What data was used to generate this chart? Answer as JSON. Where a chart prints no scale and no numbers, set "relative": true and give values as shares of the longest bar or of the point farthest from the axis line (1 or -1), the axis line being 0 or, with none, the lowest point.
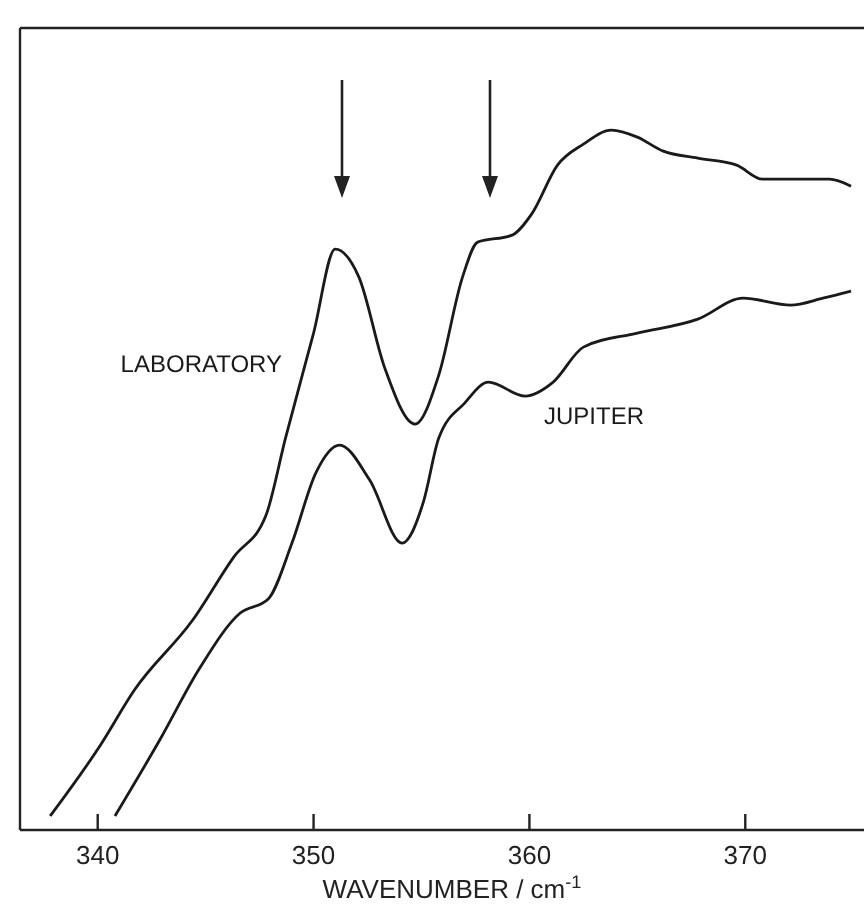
{
  "chart_data": {
    "type": "line",
    "relative": true,
    "xlabel": "WAVENUMBER / cm$^{-1}$",
    "xlim": [
      336.4,
      375.5
    ],
    "xticks": [
      340,
      350,
      360,
      370
    ],
    "grid": false,
    "marker": "none",
    "line_style": "solid",
    "series": [
      {
        "name": "LABORATORY",
        "color": "#1a1a1a",
        "x": [
          337.8,
          340.1,
          341.7,
          344.4,
          346.3,
          347.8,
          348.7,
          350.0,
          351.0,
          352.1,
          353.3,
          354.7,
          355.8,
          356.9,
          357.6,
          359.2,
          360.1,
          361.3,
          362.5,
          363.8,
          365.0,
          366.2,
          367.8,
          369.6,
          370.8,
          372.1,
          373.9,
          374.9
        ],
        "values": [
          0.02,
          0.12,
          0.2,
          0.3,
          0.39,
          0.45,
          0.56,
          0.71,
          0.83,
          0.79,
          0.66,
          0.58,
          0.65,
          0.79,
          0.84,
          0.85,
          0.88,
          0.95,
          0.98,
          1.0,
          0.99,
          0.97,
          0.96,
          0.95,
          0.93,
          0.93,
          0.93,
          0.92
        ]
      },
      {
        "name": "JUPITER",
        "color": "#1a1a1a",
        "x": [
          340.8,
          342.9,
          344.7,
          346.6,
          347.9,
          349.0,
          350.1,
          351.2,
          352.6,
          354.1,
          355.1,
          355.8,
          357.0,
          358.1,
          359.8,
          361.1,
          362.5,
          365.0,
          367.8,
          369.9,
          372.1,
          373.6,
          374.9
        ],
        "values": [
          0.02,
          0.13,
          0.23,
          0.31,
          0.33,
          0.41,
          0.51,
          0.55,
          0.5,
          0.41,
          0.47,
          0.56,
          0.61,
          0.64,
          0.62,
          0.64,
          0.69,
          0.71,
          0.73,
          0.76,
          0.75,
          0.76,
          0.77
        ]
      }
    ]
  }
}
